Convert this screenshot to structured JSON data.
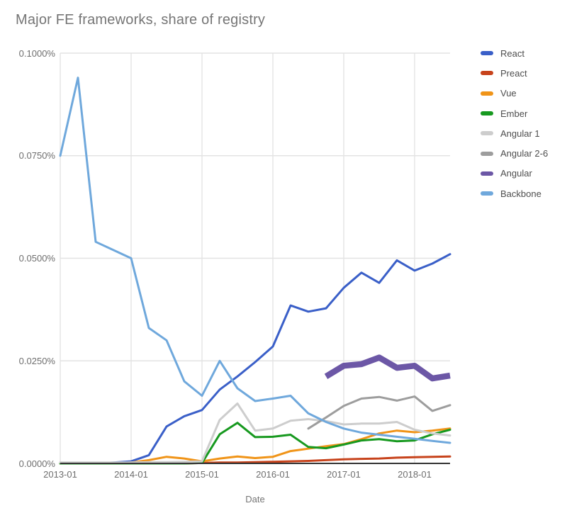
{
  "colors": {
    "title_text": "#757575",
    "tick_text": "#6e6e6e",
    "gridline": "#e3e3e3",
    "axis_baseline": "#333333"
  },
  "chart_data": {
    "type": "line",
    "title": "Major FE frameworks, share of registry",
    "xlabel": "Date",
    "ylabel": "",
    "ylim": [
      0,
      0.1
    ],
    "y_unit": "percent of registry",
    "grid": true,
    "legend_position": "right",
    "y_ticks": [
      {
        "value": 0.1,
        "label": "0.1000%"
      },
      {
        "value": 0.075,
        "label": "0.0750%"
      },
      {
        "value": 0.05,
        "label": "0.0500%"
      },
      {
        "value": 0.025,
        "label": "0.0250%"
      },
      {
        "value": 0.0,
        "label": "0.0000%"
      }
    ],
    "x_axis_ticks": [
      {
        "index": 0,
        "label": "2013-01"
      },
      {
        "index": 4,
        "label": "2014-01"
      },
      {
        "index": 8,
        "label": "2015-01"
      },
      {
        "index": 12,
        "label": "2016-01"
      },
      {
        "index": 16,
        "label": "2017-01"
      },
      {
        "index": 20,
        "label": "2018-01"
      }
    ],
    "x": [
      "2013-01",
      "2013-04",
      "2013-07",
      "2013-10",
      "2014-01",
      "2014-04",
      "2014-07",
      "2014-10",
      "2015-01",
      "2015-04",
      "2015-07",
      "2015-10",
      "2016-01",
      "2016-04",
      "2016-07",
      "2016-10",
      "2017-01",
      "2017-04",
      "2017-07",
      "2017-10",
      "2018-01",
      "2018-04",
      "2018-07"
    ],
    "series": [
      {
        "name": "React",
        "color": "#3a5fc8",
        "line_width": 3,
        "values": [
          0.0,
          0.0,
          0.0,
          0.0002,
          0.0005,
          0.002,
          0.009,
          0.0115,
          0.013,
          0.018,
          0.0212,
          0.0247,
          0.0285,
          0.0385,
          0.037,
          0.0378,
          0.0428,
          0.0465,
          0.044,
          0.0495,
          0.047,
          0.0487,
          0.051
        ]
      },
      {
        "name": "Preact",
        "color": "#c7431c",
        "line_width": 3,
        "values": [
          0.0,
          0.0,
          0.0,
          0.0,
          0.0,
          0.0,
          0.0,
          0.0,
          0.0001,
          0.0002,
          0.0002,
          0.0003,
          0.0004,
          0.0005,
          0.0006,
          0.0008,
          0.001,
          0.0011,
          0.0012,
          0.0014,
          0.0015,
          0.0016,
          0.0017
        ]
      },
      {
        "name": "Vue",
        "color": "#f09418",
        "line_width": 3,
        "values": [
          0.0,
          0.0,
          0.0,
          0.0,
          0.0002,
          0.0008,
          0.0016,
          0.0012,
          0.0005,
          0.0012,
          0.0017,
          0.0013,
          0.0016,
          0.003,
          0.0036,
          0.0042,
          0.0047,
          0.0059,
          0.0073,
          0.008,
          0.0076,
          0.008,
          0.0085
        ]
      },
      {
        "name": "Ember",
        "color": "#17991f",
        "line_width": 3,
        "values": [
          0.0,
          0.0,
          0.0,
          0.0,
          0.0,
          0.0,
          0.0,
          0.0,
          0.0001,
          0.0071,
          0.0099,
          0.0064,
          0.0065,
          0.007,
          0.004,
          0.0037,
          0.0046,
          0.0056,
          0.0059,
          0.0054,
          0.0056,
          0.0071,
          0.0082
        ]
      },
      {
        "name": "Angular 1",
        "color": "#cdcdcd",
        "line_width": 3,
        "values": [
          0.0002,
          0.0002,
          0.0002,
          0.0002,
          0.0002,
          0.0003,
          0.0003,
          0.0004,
          0.0005,
          0.0106,
          0.0146,
          0.008,
          0.0085,
          0.0104,
          0.0108,
          0.0103,
          0.0095,
          0.0097,
          0.0097,
          0.0101,
          0.0082,
          0.0073,
          0.0068
        ]
      },
      {
        "name": "Angular 2-6",
        "color": "#9d9d9d",
        "line_width": 3,
        "values": [
          null,
          null,
          null,
          null,
          null,
          null,
          null,
          null,
          null,
          null,
          null,
          null,
          null,
          null,
          0.0085,
          0.0112,
          0.014,
          0.0158,
          0.0162,
          0.0153,
          0.0163,
          0.0128,
          0.0142
        ]
      },
      {
        "name": "Angular",
        "color": "#6c57a6",
        "line_width": 8.5,
        "values": [
          null,
          null,
          null,
          null,
          null,
          null,
          null,
          null,
          null,
          null,
          null,
          null,
          null,
          null,
          null,
          0.0212,
          0.0238,
          0.0242,
          0.0258,
          0.0233,
          0.0238,
          0.0207,
          0.0214
        ]
      },
      {
        "name": "Backbone",
        "color": "#6fa8dc",
        "line_width": 3,
        "values": [
          0.075,
          0.094,
          0.054,
          0.052,
          0.05,
          0.033,
          0.03,
          0.02,
          0.0165,
          0.025,
          0.0183,
          0.0152,
          0.0158,
          0.0165,
          0.0122,
          0.0101,
          0.0085,
          0.0075,
          0.007,
          0.0065,
          0.006,
          0.0055,
          0.005
        ]
      }
    ]
  }
}
